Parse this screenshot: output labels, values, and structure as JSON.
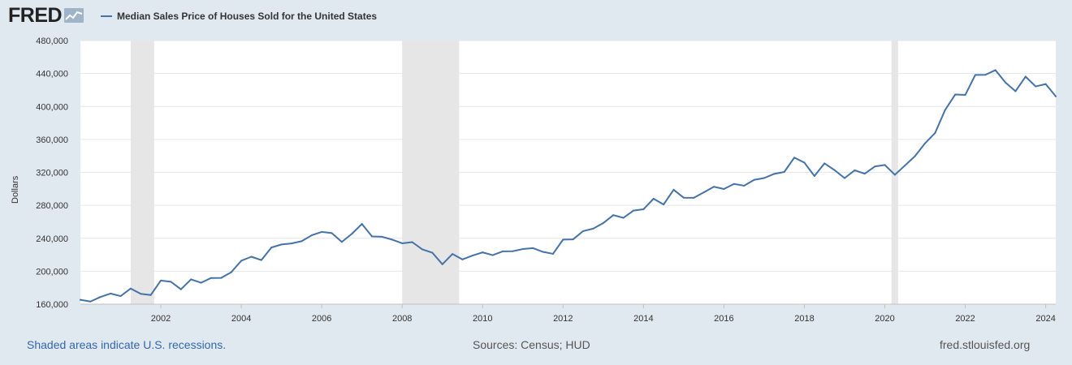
{
  "header": {
    "logo_text": "FRED",
    "logo_icon": "trend-line-icon",
    "legend_label": "Median Sales Price of Houses Sold for the United States"
  },
  "footer": {
    "recession_note": "Shaded areas indicate U.S. recessions.",
    "sources": "Sources: Census; HUD",
    "site": "fred.stlouisfed.org"
  },
  "colors": {
    "series": "#4572a7",
    "recession": "#e6e6e6",
    "background": "#e1e9f0",
    "plot": "#ffffff"
  },
  "chart_data": {
    "type": "line",
    "title": "",
    "xlabel": "",
    "ylabel": "Dollars",
    "ylim": [
      160000,
      480000
    ],
    "xlim": [
      "2000-01-01",
      "2024-04-01"
    ],
    "grid": true,
    "legend_position": "top-left",
    "y_ticks": [
      "160,000",
      "200,000",
      "240,000",
      "280,000",
      "320,000",
      "360,000",
      "400,000",
      "440,000",
      "480,000"
    ],
    "y_tick_values": [
      160000,
      200000,
      240000,
      280000,
      320000,
      360000,
      400000,
      440000,
      480000
    ],
    "x_ticks": [
      "2002",
      "2004",
      "2006",
      "2008",
      "2010",
      "2012",
      "2014",
      "2016",
      "2018",
      "2020",
      "2022",
      "2024"
    ],
    "recessions": [
      [
        "2001-04-01",
        "2001-11-01"
      ],
      [
        "2008-01-01",
        "2009-06-01"
      ],
      [
        "2020-03-01",
        "2020-04-30"
      ]
    ],
    "series": [
      {
        "name": "Median Sales Price of Houses Sold for the United States",
        "x": [
          "2000-01",
          "2000-04",
          "2000-07",
          "2000-10",
          "2001-01",
          "2001-04",
          "2001-07",
          "2001-10",
          "2002-01",
          "2002-04",
          "2002-07",
          "2002-10",
          "2003-01",
          "2003-04",
          "2003-07",
          "2003-10",
          "2004-01",
          "2004-04",
          "2004-07",
          "2004-10",
          "2005-01",
          "2005-04",
          "2005-07",
          "2005-10",
          "2006-01",
          "2006-04",
          "2006-07",
          "2006-10",
          "2007-01",
          "2007-04",
          "2007-07",
          "2007-10",
          "2008-01",
          "2008-04",
          "2008-07",
          "2008-10",
          "2009-01",
          "2009-04",
          "2009-07",
          "2009-10",
          "2010-01",
          "2010-04",
          "2010-07",
          "2010-10",
          "2011-01",
          "2011-04",
          "2011-07",
          "2011-10",
          "2012-01",
          "2012-04",
          "2012-07",
          "2012-10",
          "2013-01",
          "2013-04",
          "2013-07",
          "2013-10",
          "2014-01",
          "2014-04",
          "2014-07",
          "2014-10",
          "2015-01",
          "2015-04",
          "2015-07",
          "2015-10",
          "2016-01",
          "2016-04",
          "2016-07",
          "2016-10",
          "2017-01",
          "2017-04",
          "2017-07",
          "2017-10",
          "2018-01",
          "2018-04",
          "2018-07",
          "2018-10",
          "2019-01",
          "2019-04",
          "2019-07",
          "2019-10",
          "2020-01",
          "2020-04",
          "2020-07",
          "2020-10",
          "2021-01",
          "2021-04",
          "2021-07",
          "2021-10",
          "2022-01",
          "2022-04",
          "2022-07",
          "2022-10",
          "2023-01",
          "2023-04",
          "2023-07",
          "2023-10",
          "2024-01",
          "2024-04"
        ],
        "values": [
          165300,
          163200,
          168800,
          172900,
          169800,
          179000,
          172500,
          171100,
          188700,
          187200,
          178000,
          190100,
          186000,
          191800,
          191900,
          198800,
          212700,
          217600,
          213500,
          228800,
          232500,
          233700,
          236400,
          243600,
          247700,
          246300,
          235600,
          245400,
          257400,
          242200,
          241800,
          238400,
          233900,
          235300,
          226500,
          222500,
          208400,
          220900,
          214300,
          219000,
          222900,
          219500,
          224100,
          224300,
          226900,
          228100,
          223500,
          221100,
          238400,
          238700,
          248700,
          251700,
          258400,
          268100,
          264800,
          273600,
          275200,
          288000,
          281000,
          298900,
          289200,
          289100,
          295800,
          302500,
          299800,
          306000,
          303800,
          310900,
          313100,
          318200,
          320500,
          337900,
          331800,
          315600,
          330900,
          322800,
          313000,
          322500,
          318400,
          327100,
          329000,
          317100,
          328300,
          339700,
          355300,
          367800,
          395800,
          414500,
          414000,
          438300,
          438400,
          444100,
          429000,
          418500,
          436200,
          424300,
          427200,
          412300
        ]
      }
    ]
  }
}
